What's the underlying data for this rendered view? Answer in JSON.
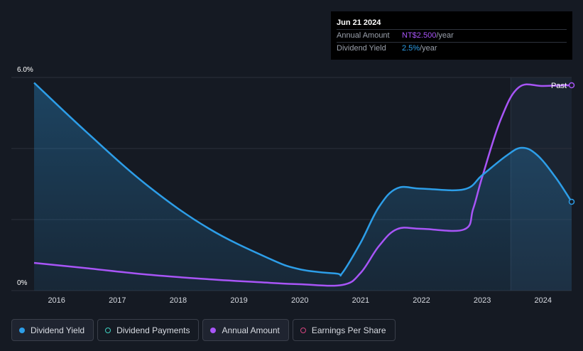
{
  "tooltip": {
    "date": "Jun 21 2024",
    "rows": [
      {
        "label": "Annual Amount",
        "value": "NT$2.500",
        "unit": "/year"
      },
      {
        "label": "Dividend Yield",
        "value": "2.5%",
        "unit": "/year"
      }
    ]
  },
  "past_label": "Past",
  "legend": [
    {
      "label": "Dividend Yield",
      "color": "#2d9ee8",
      "style": "filled",
      "active": true
    },
    {
      "label": "Dividend Payments",
      "color": "#3fd0c0",
      "style": "hollow",
      "active": false
    },
    {
      "label": "Annual Amount",
      "color": "#a855f7",
      "style": "filled",
      "active": true
    },
    {
      "label": "Earnings Per Share",
      "color": "#d6457f",
      "style": "hollow",
      "active": false
    }
  ],
  "colors": {
    "background": "#151a23",
    "dividend_yield": "#2d9ee8",
    "annual_amount": "#a855f7",
    "grid": "#2b303b"
  },
  "chart_data": {
    "type": "line",
    "y_tick_labels": [
      "6.0%",
      "0%"
    ],
    "ylim": [
      0,
      6.0
    ],
    "xlim": [
      2015.6,
      2024.47
    ],
    "x_tick_labels": [
      "2016",
      "2017",
      "2018",
      "2019",
      "2020",
      "2021",
      "2022",
      "2023",
      "2024"
    ],
    "x_ticks": [
      2016,
      2017,
      2018,
      2019,
      2020,
      2021,
      2022,
      2023,
      2024
    ],
    "gridlines_y": [
      6.0,
      4.0,
      2.0,
      0
    ],
    "forecast_shade_start": 2023.47,
    "series": [
      {
        "name": "Dividend Yield",
        "key": "dividend_yield",
        "fill": true,
        "points": [
          [
            2015.63,
            5.85
          ],
          [
            2016.5,
            4.45
          ],
          [
            2017.5,
            2.95
          ],
          [
            2018.5,
            1.75
          ],
          [
            2019.5,
            0.9
          ],
          [
            2020.0,
            0.6
          ],
          [
            2020.6,
            0.48
          ],
          [
            2020.7,
            0.5
          ],
          [
            2021.0,
            1.35
          ],
          [
            2021.3,
            2.35
          ],
          [
            2021.6,
            2.88
          ],
          [
            2022.0,
            2.87
          ],
          [
            2022.7,
            2.85
          ],
          [
            2023.0,
            3.25
          ],
          [
            2023.4,
            3.8
          ],
          [
            2023.65,
            4.02
          ],
          [
            2023.9,
            3.82
          ],
          [
            2024.2,
            3.2
          ],
          [
            2024.47,
            2.5
          ]
        ]
      },
      {
        "name": "Annual Amount",
        "key": "annual_amount",
        "fill": false,
        "points": [
          [
            2015.63,
            0.78
          ],
          [
            2016.5,
            0.63
          ],
          [
            2017.5,
            0.45
          ],
          [
            2018.5,
            0.32
          ],
          [
            2019.5,
            0.22
          ],
          [
            2020.0,
            0.18
          ],
          [
            2020.7,
            0.16
          ],
          [
            2021.0,
            0.5
          ],
          [
            2021.3,
            1.25
          ],
          [
            2021.6,
            1.73
          ],
          [
            2022.0,
            1.74
          ],
          [
            2022.7,
            1.72
          ],
          [
            2022.85,
            2.3
          ],
          [
            2023.0,
            3.2
          ],
          [
            2023.3,
            4.8
          ],
          [
            2023.6,
            5.72
          ],
          [
            2024.0,
            5.76
          ],
          [
            2024.47,
            5.78
          ]
        ]
      }
    ]
  }
}
